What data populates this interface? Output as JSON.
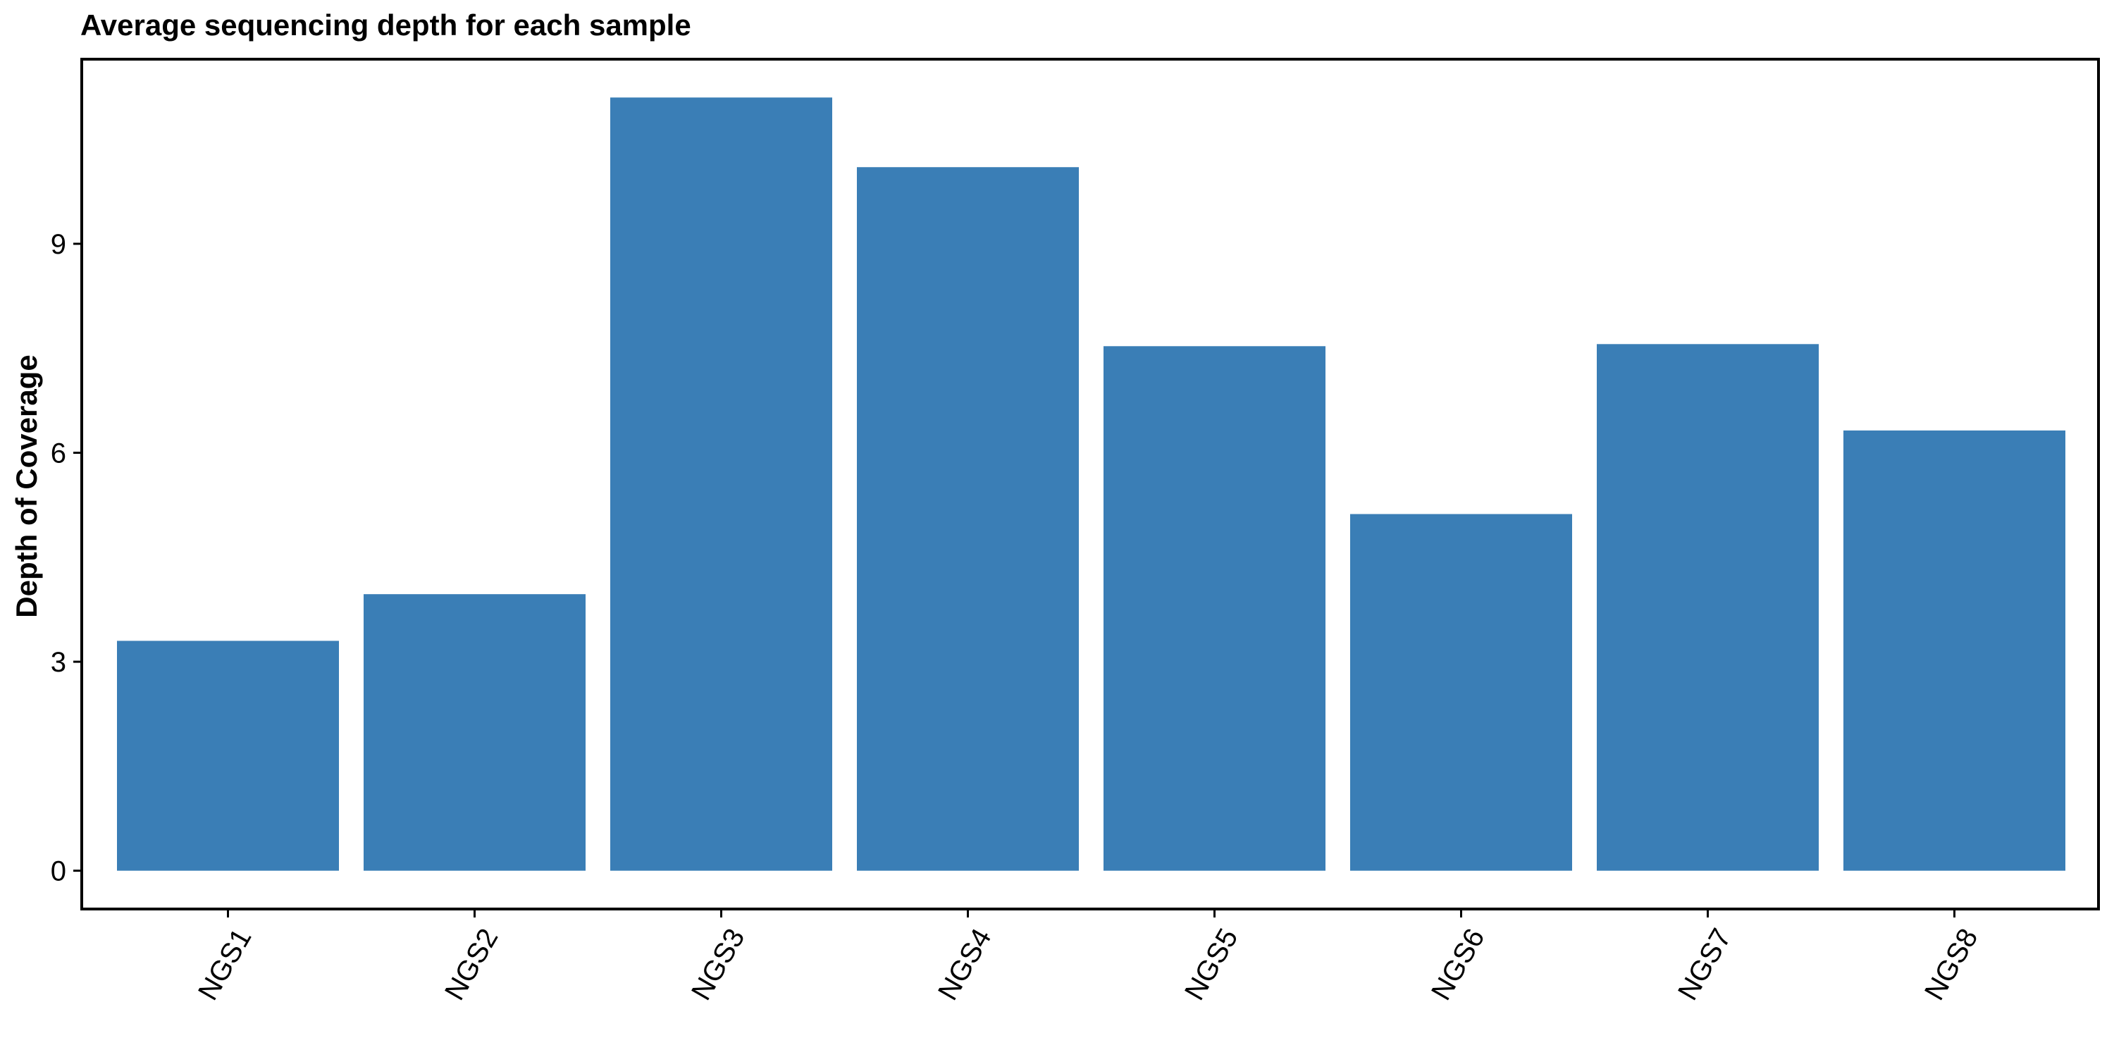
{
  "chart_data": {
    "type": "bar",
    "title": "Average sequencing depth for each sample",
    "xlabel": "",
    "ylabel": "Depth of Coverage",
    "categories": [
      "NGS1",
      "NGS2",
      "NGS3",
      "NGS4",
      "NGS5",
      "NGS6",
      "NGS7",
      "NGS8"
    ],
    "values": [
      3.3,
      3.97,
      11.1,
      10.1,
      7.53,
      5.12,
      7.56,
      6.32
    ],
    "ylim": [
      -0.55,
      11.65
    ],
    "yticks": [
      0,
      3,
      6,
      9
    ],
    "ytick_labels": [
      "0",
      "3",
      "6",
      "9"
    ],
    "grid": false,
    "legend": "none",
    "bar_color": "#3a7eb6",
    "x_tick_rotation_deg": 60
  }
}
